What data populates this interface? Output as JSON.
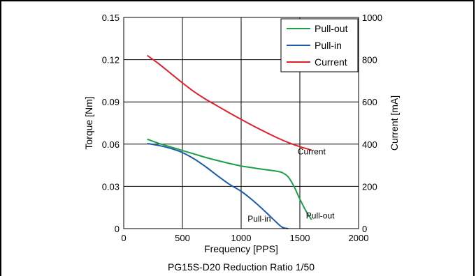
{
  "chart_data": {
    "type": "line",
    "title": "PG15S-D20  Reduction Ratio  1/50",
    "xlabel": "Frequency [PPS]",
    "ylabel_left": "Torque [Nm]",
    "ylabel_right": "Current [mA]",
    "xlim": [
      0,
      2000
    ],
    "ylim_left": [
      0,
      0.15
    ],
    "ylim_right": [
      0,
      1000
    ],
    "xticks": [
      "0",
      "500",
      "1000",
      "1500",
      "2000"
    ],
    "yticks_left": [
      "0",
      "0.03",
      "0.06",
      "0.09",
      "0.12",
      "0.15"
    ],
    "yticks_right": [
      "0",
      "200",
      "400",
      "600",
      "800",
      "1000"
    ],
    "grid": true,
    "legend_position": "top-right",
    "series": [
      {
        "name": "Pull-out",
        "axis": "left",
        "color": "#1aa04a",
        "x": [
          200,
          300,
          400,
          500,
          600,
          700,
          800,
          900,
          1000,
          1100,
          1200,
          1300,
          1350,
          1400,
          1450,
          1500,
          1550,
          1600
        ],
        "y": [
          0.0635,
          0.0605,
          0.058,
          0.0555,
          0.053,
          0.0505,
          0.0483,
          0.0463,
          0.0445,
          0.0432,
          0.042,
          0.0408,
          0.0398,
          0.0368,
          0.03,
          0.021,
          0.0128,
          0.0063
        ]
      },
      {
        "name": "Pull-in",
        "axis": "left",
        "color": "#1f5ba8",
        "x": [
          200,
          300,
          400,
          500,
          600,
          700,
          800,
          900,
          1000,
          1100,
          1200,
          1300,
          1350,
          1400
        ],
        "y": [
          0.0605,
          0.059,
          0.057,
          0.054,
          0.0495,
          0.0438,
          0.0375,
          0.0315,
          0.0265,
          0.02,
          0.0125,
          0.0045,
          0.001,
          0.0
        ]
      },
      {
        "name": "Current",
        "axis": "right",
        "color": "#e0202a",
        "x": [
          200,
          300,
          400,
          500,
          600,
          700,
          800,
          900,
          1000,
          1100,
          1200,
          1300,
          1400,
          1500,
          1600
        ],
        "y": [
          820,
          780,
          735,
          690,
          648,
          612,
          580,
          548,
          517,
          487,
          459,
          432,
          408,
          388,
          372
        ]
      }
    ],
    "annotations": [
      {
        "text": "Current",
        "series": "Current"
      },
      {
        "text": "Pull-out",
        "series": "Pull-out"
      },
      {
        "text": "Pull-in",
        "series": "Pull-in"
      }
    ]
  }
}
